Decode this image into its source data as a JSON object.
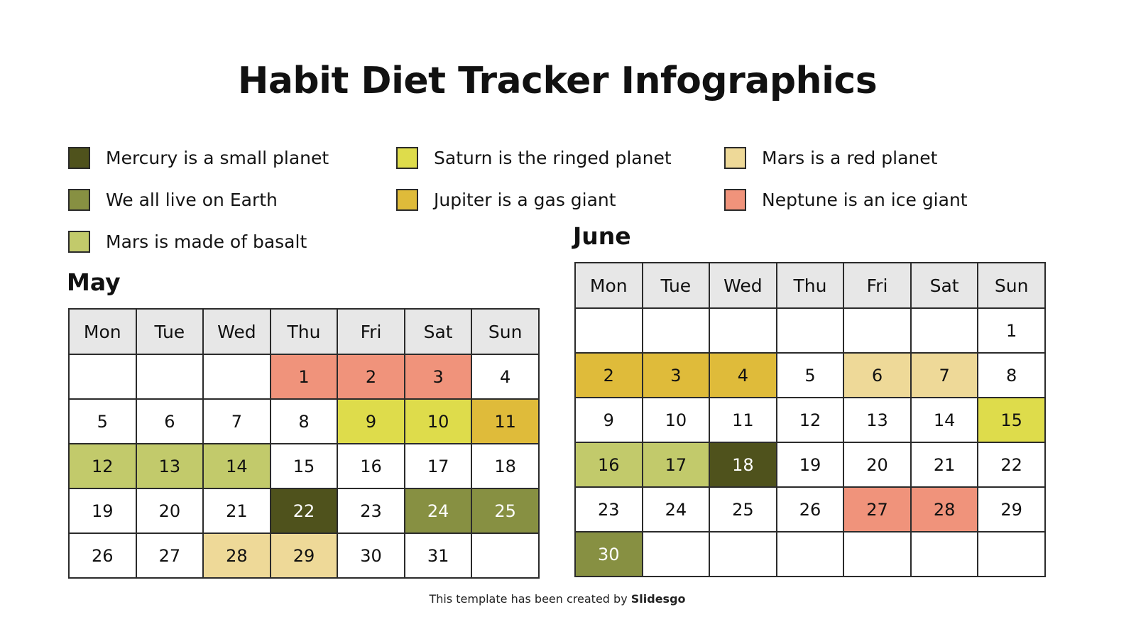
{
  "title": "Habit Diet Tracker Infographics",
  "colors": {
    "dark_olive": "#4f521c",
    "olive": "#879042",
    "light_olive": "#c2ca6b",
    "yellow": "#dedc4b",
    "mustard": "#dfbb3a",
    "beige": "#eed998",
    "salmon": "#f0937b",
    "header_bg": "#e7e7e7"
  },
  "legend": [
    {
      "label": "Mercury is a small planet",
      "color": "#4f521c",
      "key": "dark_olive"
    },
    {
      "label": "We all live on Earth",
      "color": "#879042",
      "key": "olive"
    },
    {
      "label": "Mars is made of basalt",
      "color": "#c2ca6b",
      "key": "light_olive"
    },
    {
      "label": "Saturn is the ringed planet",
      "color": "#dedc4b",
      "key": "yellow"
    },
    {
      "label": "Jupiter is a gas giant",
      "color": "#dfbb3a",
      "key": "mustard"
    },
    {
      "label": "Mars is a red planet",
      "color": "#eed998",
      "key": "beige"
    },
    {
      "label": "Neptune is an ice giant",
      "color": "#f0937b",
      "key": "salmon"
    }
  ],
  "weekdays": [
    "Mon",
    "Tue",
    "Wed",
    "Thu",
    "Fri",
    "Sat",
    "Sun"
  ],
  "may": {
    "title": "May",
    "weeks": [
      [
        {
          "d": ""
        },
        {
          "d": ""
        },
        {
          "d": ""
        },
        {
          "d": "1",
          "c": "salmon"
        },
        {
          "d": "2",
          "c": "salmon"
        },
        {
          "d": "3",
          "c": "salmon"
        },
        {
          "d": "4"
        }
      ],
      [
        {
          "d": "5"
        },
        {
          "d": "6"
        },
        {
          "d": "7"
        },
        {
          "d": "8"
        },
        {
          "d": "9",
          "c": "yellow"
        },
        {
          "d": "10",
          "c": "yellow"
        },
        {
          "d": "11",
          "c": "mustard"
        }
      ],
      [
        {
          "d": "12",
          "c": "light_olive"
        },
        {
          "d": "13",
          "c": "light_olive"
        },
        {
          "d": "14",
          "c": "light_olive"
        },
        {
          "d": "15"
        },
        {
          "d": "16"
        },
        {
          "d": "17"
        },
        {
          "d": "18"
        }
      ],
      [
        {
          "d": "19"
        },
        {
          "d": "20"
        },
        {
          "d": "21"
        },
        {
          "d": "22",
          "c": "dark_olive"
        },
        {
          "d": "23"
        },
        {
          "d": "24",
          "c": "olive"
        },
        {
          "d": "25",
          "c": "olive"
        }
      ],
      [
        {
          "d": "26"
        },
        {
          "d": "27"
        },
        {
          "d": "28",
          "c": "beige"
        },
        {
          "d": "29",
          "c": "beige"
        },
        {
          "d": "30"
        },
        {
          "d": "31"
        },
        {
          "d": ""
        }
      ]
    ]
  },
  "june": {
    "title": "June",
    "weeks": [
      [
        {
          "d": ""
        },
        {
          "d": ""
        },
        {
          "d": ""
        },
        {
          "d": ""
        },
        {
          "d": ""
        },
        {
          "d": ""
        },
        {
          "d": "1"
        }
      ],
      [
        {
          "d": "2",
          "c": "mustard"
        },
        {
          "d": "3",
          "c": "mustard"
        },
        {
          "d": "4",
          "c": "mustard"
        },
        {
          "d": "5"
        },
        {
          "d": "6",
          "c": "beige"
        },
        {
          "d": "7",
          "c": "beige"
        },
        {
          "d": "8"
        }
      ],
      [
        {
          "d": "9"
        },
        {
          "d": "10"
        },
        {
          "d": "11"
        },
        {
          "d": "12"
        },
        {
          "d": "13"
        },
        {
          "d": "14"
        },
        {
          "d": "15",
          "c": "yellow"
        }
      ],
      [
        {
          "d": "16",
          "c": "light_olive"
        },
        {
          "d": "17",
          "c": "light_olive"
        },
        {
          "d": "18",
          "c": "dark_olive"
        },
        {
          "d": "19"
        },
        {
          "d": "20"
        },
        {
          "d": "21"
        },
        {
          "d": "22"
        }
      ],
      [
        {
          "d": "23"
        },
        {
          "d": "24"
        },
        {
          "d": "25"
        },
        {
          "d": "26"
        },
        {
          "d": "27",
          "c": "salmon"
        },
        {
          "d": "28",
          "c": "salmon"
        },
        {
          "d": "29"
        }
      ],
      [
        {
          "d": "30",
          "c": "olive"
        },
        {
          "d": ""
        },
        {
          "d": ""
        },
        {
          "d": ""
        },
        {
          "d": ""
        },
        {
          "d": ""
        },
        {
          "d": ""
        }
      ]
    ]
  },
  "footer": {
    "prefix": "This template has been created by ",
    "brand": "Slidesgo"
  }
}
